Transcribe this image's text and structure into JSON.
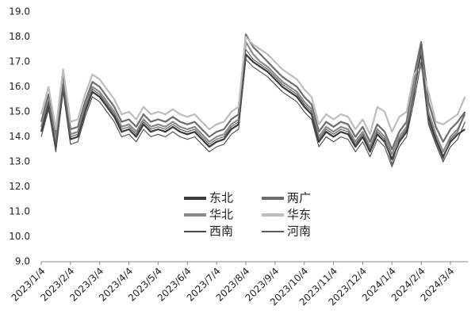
{
  "chart_data": {
    "type": "line",
    "categories": [
      "2023/1/4",
      null,
      null,
      null,
      "2023/2/4",
      null,
      null,
      null,
      "2023/3/4",
      null,
      null,
      null,
      "2023/4/4",
      null,
      null,
      null,
      "2023/5/4",
      null,
      null,
      null,
      "2023/6/4",
      null,
      null,
      null,
      "2023/7/4",
      null,
      null,
      null,
      "2023/8/4",
      null,
      null,
      null,
      "2023/9/4",
      null,
      null,
      null,
      "2023/10/4",
      null,
      null,
      null,
      "2023/11/4",
      null,
      null,
      null,
      "2023/12/4",
      null,
      null,
      null,
      "2024/1/4",
      null,
      null,
      null,
      "2024/2/4",
      null,
      null,
      null,
      "2024/3/4",
      null,
      null
    ],
    "ylim": [
      9,
      19
    ],
    "yticks": [
      {
        "value": 9,
        "label": "9.0"
      },
      {
        "value": 10,
        "label": "10.0"
      },
      {
        "value": 11,
        "label": "11.0"
      },
      {
        "value": 12,
        "label": "12.0"
      },
      {
        "value": 13,
        "label": "13.0"
      },
      {
        "value": 14,
        "label": "14.0"
      },
      {
        "value": 15,
        "label": "15.0"
      },
      {
        "value": 16,
        "label": "16.0"
      },
      {
        "value": 17,
        "label": "17.0"
      },
      {
        "value": 18,
        "label": "18.0"
      },
      {
        "value": 19,
        "label": "19.0"
      }
    ],
    "grid": false,
    "series": [
      {
        "name": "东北",
        "color": "#3a3a3a",
        "values": [
          14.2,
          15.3,
          13.6,
          16.0,
          13.9,
          14.0,
          15.0,
          15.8,
          15.6,
          15.2,
          14.8,
          14.2,
          14.3,
          14.0,
          14.5,
          14.2,
          14.3,
          14.2,
          14.4,
          14.2,
          14.1,
          14.2,
          13.9,
          13.6,
          13.8,
          13.9,
          14.3,
          14.5,
          17.3,
          17.0,
          16.8,
          16.6,
          16.3,
          16.0,
          15.8,
          15.6,
          15.2,
          14.9,
          13.8,
          14.2,
          14.0,
          14.2,
          14.1,
          13.6,
          14.0,
          13.4,
          14.1,
          13.8,
          13.1,
          13.8,
          14.2,
          15.8,
          17.4,
          14.8,
          13.9,
          13.2,
          13.8,
          14.1,
          14.3
        ]
      },
      {
        "name": "两广",
        "color": "#6e6e6e",
        "values": [
          14.6,
          15.7,
          14.0,
          16.4,
          14.3,
          14.4,
          15.4,
          16.2,
          16.0,
          15.6,
          15.2,
          14.6,
          14.7,
          14.4,
          14.9,
          14.6,
          14.7,
          14.6,
          14.8,
          14.6,
          14.5,
          14.6,
          14.3,
          14.0,
          14.2,
          14.3,
          14.7,
          14.9,
          18.1,
          17.6,
          17.3,
          17.0,
          16.7,
          16.4,
          16.2,
          16.0,
          15.6,
          15.3,
          14.2,
          14.6,
          14.4,
          14.6,
          14.5,
          14.0,
          14.4,
          13.8,
          14.5,
          14.2,
          13.5,
          14.2,
          14.6,
          16.4,
          17.8,
          15.4,
          14.4,
          13.8,
          14.3,
          14.6,
          15.0
        ]
      },
      {
        "name": "华北",
        "color": "#8a8a8a",
        "values": [
          14.4,
          15.5,
          13.8,
          16.2,
          14.1,
          14.2,
          15.2,
          16.0,
          15.8,
          15.4,
          15.0,
          14.4,
          14.5,
          14.2,
          14.7,
          14.4,
          14.5,
          14.4,
          14.6,
          14.4,
          14.3,
          14.4,
          14.1,
          13.8,
          14.0,
          14.1,
          14.5,
          14.7,
          17.8,
          17.3,
          17.0,
          16.8,
          16.5,
          16.2,
          16.0,
          15.8,
          15.4,
          15.1,
          14.0,
          14.4,
          14.2,
          14.4,
          14.3,
          13.8,
          14.2,
          13.6,
          14.3,
          14.0,
          13.3,
          14.0,
          14.4,
          16.0,
          17.6,
          15.0,
          14.1,
          13.4,
          14.0,
          14.3,
          14.9
        ]
      },
      {
        "name": "华东",
        "color": "#bdbdbd",
        "values": [
          14.9,
          16.0,
          14.3,
          16.7,
          14.6,
          14.7,
          15.7,
          16.5,
          16.3,
          15.9,
          15.5,
          14.9,
          15.0,
          14.7,
          15.2,
          14.9,
          15.0,
          14.9,
          15.1,
          14.9,
          14.8,
          14.9,
          14.6,
          14.3,
          14.5,
          14.6,
          15.0,
          15.2,
          18.0,
          17.7,
          17.5,
          17.3,
          17.0,
          16.7,
          16.5,
          16.3,
          15.9,
          15.6,
          14.5,
          14.9,
          14.7,
          14.9,
          14.8,
          14.3,
          14.7,
          14.1,
          15.2,
          15.0,
          14.2,
          14.8,
          15.0,
          16.5,
          16.8,
          15.8,
          14.6,
          14.5,
          14.7,
          14.9,
          15.6
        ]
      },
      {
        "name": "西南",
        "color": "#4a4a4a",
        "values": [
          14.0,
          15.1,
          13.4,
          15.8,
          13.7,
          13.8,
          14.8,
          15.6,
          15.4,
          15.0,
          14.6,
          14.0,
          14.1,
          13.8,
          14.3,
          14.0,
          14.1,
          14.0,
          14.2,
          14.0,
          13.9,
          14.0,
          13.7,
          13.4,
          13.6,
          13.7,
          14.1,
          14.3,
          17.1,
          16.8,
          16.6,
          16.4,
          16.1,
          15.8,
          15.6,
          15.4,
          15.0,
          14.7,
          13.6,
          14.0,
          13.8,
          14.0,
          13.9,
          13.4,
          13.8,
          13.2,
          13.9,
          13.6,
          12.8,
          13.6,
          14.0,
          15.4,
          17.0,
          14.5,
          13.7,
          13.0,
          13.6,
          13.9,
          14.6
        ]
      },
      {
        "name": "河南",
        "color": "#5a5a5a",
        "values": [
          14.3,
          15.4,
          13.7,
          16.1,
          14.0,
          14.1,
          15.1,
          15.9,
          15.7,
          15.3,
          14.9,
          14.3,
          14.4,
          14.1,
          14.6,
          14.3,
          14.4,
          14.3,
          14.5,
          14.3,
          14.2,
          14.3,
          14.0,
          13.7,
          13.9,
          14.0,
          14.4,
          14.6,
          17.5,
          17.1,
          16.9,
          16.7,
          16.4,
          16.1,
          15.9,
          15.7,
          15.3,
          15.0,
          13.9,
          14.3,
          14.1,
          14.3,
          14.2,
          13.7,
          14.1,
          13.5,
          14.2,
          13.9,
          12.9,
          13.9,
          14.3,
          15.6,
          17.7,
          14.6,
          13.8,
          13.1,
          13.9,
          14.2,
          15.0
        ]
      }
    ]
  }
}
